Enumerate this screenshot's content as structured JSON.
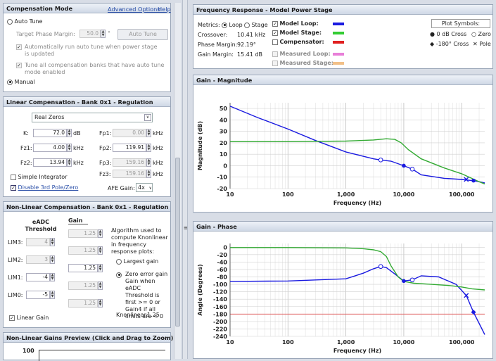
{
  "compensation_mode": {
    "title": "Compensation Mode",
    "advanced": "Advanced Options",
    "help": "Help",
    "auto_tune": "Auto Tune",
    "target_pm_label": "Target Phase Margin:",
    "target_pm_value": "50.0",
    "target_pm_unit": "°",
    "auto_tune_button": "Auto Tune",
    "auto_run_text": "Automatically run auto tune when power stage is updated",
    "tune_all_text": "Tune all compensation banks that have auto tune mode enabled",
    "manual": "Manual"
  },
  "linear": {
    "title": "Linear Compensation - Bank 0x1 - Regulation",
    "type_select": "Real Zeros",
    "k_label": "K:",
    "k_value": "72.0",
    "k_unit": "dB",
    "fz1_label": "Fz1:",
    "fz1_value": "4.00",
    "fz1_unit": "kHz",
    "fz2_label": "Fz2:",
    "fz2_value": "13.94",
    "fz2_unit": "kHz",
    "fp1_label": "Fp1:",
    "fp1_value": "0.00",
    "fp1_unit": "kHz",
    "fp2_label": "Fp2:",
    "fp2_value": "119.91",
    "fp2_unit": "kHz",
    "fp3_label": "Fp3:",
    "fp3_value": "159.16",
    "fp3_unit": "kHz",
    "fz3_label": "Fz3:",
    "fz3_value": "159.16",
    "fz3_unit": "kHz",
    "simple_integrator": "Simple Integrator",
    "disable_3rd": "Disable 3rd Pole/Zero",
    "afe_gain_label": "AFE Gain:",
    "afe_gain_value": "4x"
  },
  "nonlinear": {
    "title": "Non-Linear Compensation - Bank 0x1 - Regulation",
    "col_threshold": "eADC Threshold",
    "col_gain": "Gain",
    "rows": [
      {
        "label": "LIM3:",
        "threshold": "4",
        "gain": "1.25"
      },
      {
        "label": "LIM2:",
        "threshold": "3",
        "gain": "1.25"
      },
      {
        "label": "LIM1:",
        "threshold": "-4",
        "gain": "1.25"
      },
      {
        "label": "LIM0:",
        "threshold": "-5",
        "gain": "1.25"
      }
    ],
    "gains_between": [
      "1.25",
      "1.25",
      "1.25",
      "1.25",
      "1.25"
    ],
    "algo_text": "Algorithm used to compute Knonlinear in frequency response plots:",
    "largest_gain": "Largest gain",
    "zero_error_text": "Zero error gain Gain when eADC Threshold is first >= 0 or Gain4 if all limits are < 0",
    "linear_gain": "Linear Gain",
    "knonlinear_label": "Knonlinear:",
    "knonlinear_value": "1.25"
  },
  "preview": {
    "title": "Non-Linear Gains Preview (Click and Drag to Zoom)",
    "y_top": "100"
  },
  "freq_response": {
    "title": "Frequency Response - Model Power Stage",
    "metrics_label": "Metrics:",
    "loop": "Loop",
    "stage": "Stage",
    "crossover_label": "Crossover:",
    "crossover_value": "10.41 kHz",
    "pm_label": "Phase Margin:",
    "pm_value": "92.19°",
    "gm_label": "Gain Margin:",
    "gm_value": "15.41 dB",
    "legend": [
      {
        "name": "Model Loop:",
        "color": "#1a1ae0",
        "checked": true
      },
      {
        "name": "Model Stage:",
        "color": "#33cc33",
        "checked": true
      },
      {
        "name": "Compensator:",
        "color": "#e02020",
        "checked": false
      },
      {
        "name": "Measured Loop:",
        "color": "#e87fd8",
        "checked": false
      },
      {
        "name": "Measured Stage:",
        "color": "#f2c088",
        "checked": false
      }
    ],
    "plot_symbols": "Plot Symbols:",
    "sym_0db": "0 dB Cross",
    "sym_zero": "Zero",
    "sym_180": "-180° Cross",
    "sym_pole": "Pole"
  },
  "chart_data": [
    {
      "type": "line",
      "title": "Gain - Magnitude",
      "xlabel": "Frequency (Hz)",
      "ylabel": "Magnitude (dB)",
      "x_scale": "log",
      "xlim": [
        10,
        250000
      ],
      "ylim": [
        -20,
        55
      ],
      "x_ticks": [
        "10",
        "100",
        "1,000",
        "10,000",
        "100,000"
      ],
      "y_ticks": [
        "50",
        "40",
        "30",
        "20",
        "10",
        "0",
        "-10",
        "-20"
      ],
      "series": [
        {
          "name": "Model Loop",
          "color": "#1a1ae0",
          "x": [
            10,
            30,
            100,
            300,
            1000,
            3000,
            4000,
            6000,
            10000,
            14000,
            20000,
            50000,
            100000,
            150000,
            200000,
            250000
          ],
          "y": [
            52,
            42,
            32,
            22,
            12,
            6,
            5,
            4,
            0,
            -3,
            -8,
            -11,
            -12,
            -13,
            -14,
            -15
          ]
        },
        {
          "name": "Model Stage",
          "color": "#33aa33",
          "x": [
            10,
            100,
            1000,
            3000,
            5000,
            7000,
            9000,
            12000,
            20000,
            50000,
            100000,
            200000,
            250000
          ],
          "y": [
            21,
            21,
            21.5,
            22.5,
            23.5,
            23,
            20,
            14,
            6,
            -2,
            -7,
            -14,
            -16
          ]
        }
      ],
      "markers": [
        {
          "kind": "zero",
          "x": 4000,
          "y": 5
        },
        {
          "kind": "0dB",
          "x": 10000,
          "y": 0
        },
        {
          "kind": "zero",
          "x": 14000,
          "y": -3
        },
        {
          "kind": "pole",
          "x": 120000,
          "y": -12
        },
        {
          "kind": "0dB",
          "x": 160000,
          "y": -13
        }
      ]
    },
    {
      "type": "line",
      "title": "Gain - Phase",
      "xlabel": "Frequency (Hz)",
      "ylabel": "Angle (Degrees)",
      "x_scale": "log",
      "xlim": [
        10,
        250000
      ],
      "ylim": [
        -240,
        10
      ],
      "x_ticks": [
        "10",
        "100",
        "1,000",
        "10,000",
        "100,000"
      ],
      "y_ticks": [
        "0",
        "-20",
        "-40",
        "-60",
        "-80",
        "-100",
        "-120",
        "-140",
        "-160",
        "-180",
        "-200",
        "-220",
        "-240"
      ],
      "series": [
        {
          "name": "Model Loop",
          "color": "#1a1ae0",
          "x": [
            10,
            100,
            1000,
            2000,
            3000,
            4000,
            5000,
            7000,
            10000,
            14000,
            20000,
            40000,
            80000,
            120000,
            160000,
            200000,
            250000
          ],
          "y": [
            -92,
            -91,
            -85,
            -70,
            -58,
            -52,
            -55,
            -72,
            -91,
            -88,
            -77,
            -80,
            -100,
            -130,
            -175,
            -205,
            -235
          ],
          "color_line": "#1a1ae0"
        },
        {
          "name": "Model Stage",
          "color": "#33aa33",
          "x": [
            10,
            100,
            1000,
            2000,
            3000,
            4000,
            5000,
            6000,
            8000,
            10000,
            15000,
            30000,
            60000,
            100000,
            150000,
            250000
          ],
          "y": [
            -1,
            -1,
            -2,
            -4,
            -7,
            -12,
            -25,
            -50,
            -80,
            -92,
            -97,
            -100,
            -103,
            -107,
            -112,
            -115
          ]
        }
      ],
      "reference_line": -180,
      "markers": [
        {
          "kind": "zero",
          "x": 4000,
          "y": -52
        },
        {
          "kind": "0dB",
          "x": 10000,
          "y": -91
        },
        {
          "kind": "zero",
          "x": 14000,
          "y": -88
        },
        {
          "kind": "pole",
          "x": 120000,
          "y": -130
        },
        {
          "kind": "180",
          "x": 160000,
          "y": -175
        }
      ]
    }
  ]
}
